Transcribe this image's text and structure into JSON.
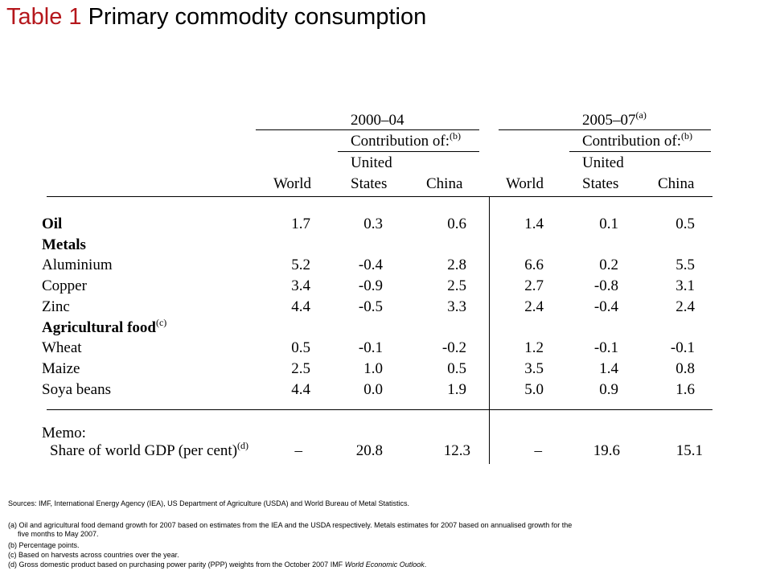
{
  "title": {
    "prefix": "Table 1",
    "text": "Primary commodity consumption"
  },
  "header": {
    "period1": "2000–04",
    "period2": "2005–07",
    "period2_note": "(a)",
    "contribution": "Contribution of:",
    "contribution_note": "(b)",
    "united": "United",
    "states": "States",
    "world": "World",
    "china": "China"
  },
  "rows": [
    {
      "label": "Oil",
      "bold": true,
      "values": [
        "1.7",
        "0.3",
        "0.6",
        "1.4",
        "0.1",
        "0.5"
      ]
    },
    {
      "label": "Metals",
      "bold": true,
      "values": []
    },
    {
      "label": "Aluminium",
      "bold": false,
      "values": [
        "5.2",
        "-0.4",
        "2.8",
        "6.6",
        "0.2",
        "5.5"
      ]
    },
    {
      "label": "Copper",
      "bold": false,
      "values": [
        "3.4",
        "-0.9",
        "2.5",
        "2.7",
        "-0.8",
        "3.1"
      ]
    },
    {
      "label": "Zinc",
      "bold": false,
      "values": [
        "4.4",
        "-0.5",
        "3.3",
        "2.4",
        "-0.4",
        "2.4"
      ]
    },
    {
      "label": "Agricultural food",
      "note": "(c)",
      "bold": true,
      "values": []
    },
    {
      "label": "Wheat",
      "bold": false,
      "values": [
        "0.5",
        "-0.1",
        "-0.2",
        "1.2",
        "-0.1",
        "-0.1"
      ]
    },
    {
      "label": "Maize",
      "bold": false,
      "values": [
        "2.5",
        "1.0",
        "0.5",
        "3.5",
        "1.4",
        "0.8"
      ]
    },
    {
      "label": "Soya beans",
      "bold": false,
      "values": [
        "4.4",
        "0.0",
        "1.9",
        "5.0",
        "0.9",
        "1.6"
      ]
    }
  ],
  "memo": {
    "label": "Memo:",
    "share_label": "Share of world GDP (per cent)",
    "share_note": "(d)",
    "values": [
      "–",
      "20.8",
      "12.3",
      "–",
      "19.6",
      "15.1"
    ]
  },
  "footnotes": {
    "sources": "Sources:  IMF, International Energy Agency (IEA), US Department of Agriculture (USDA) and World Bureau of Metal Statistics.",
    "a1": "(a)  Oil and agricultural food demand growth for 2007 based on estimates from the IEA and the USDA respectively.  Metals estimates for 2007 based on annualised growth for the",
    "a2": "five months to May 2007.",
    "b": "(b)  Percentage points.",
    "c": "(c)  Based on harvests across countries over the year.",
    "d_prefix": "(d)  Gross domestic product based on purchasing power parity (PPP) weights from the October 2007 IMF ",
    "d_italic": "World Economic Outlook",
    "d_suffix": "."
  }
}
